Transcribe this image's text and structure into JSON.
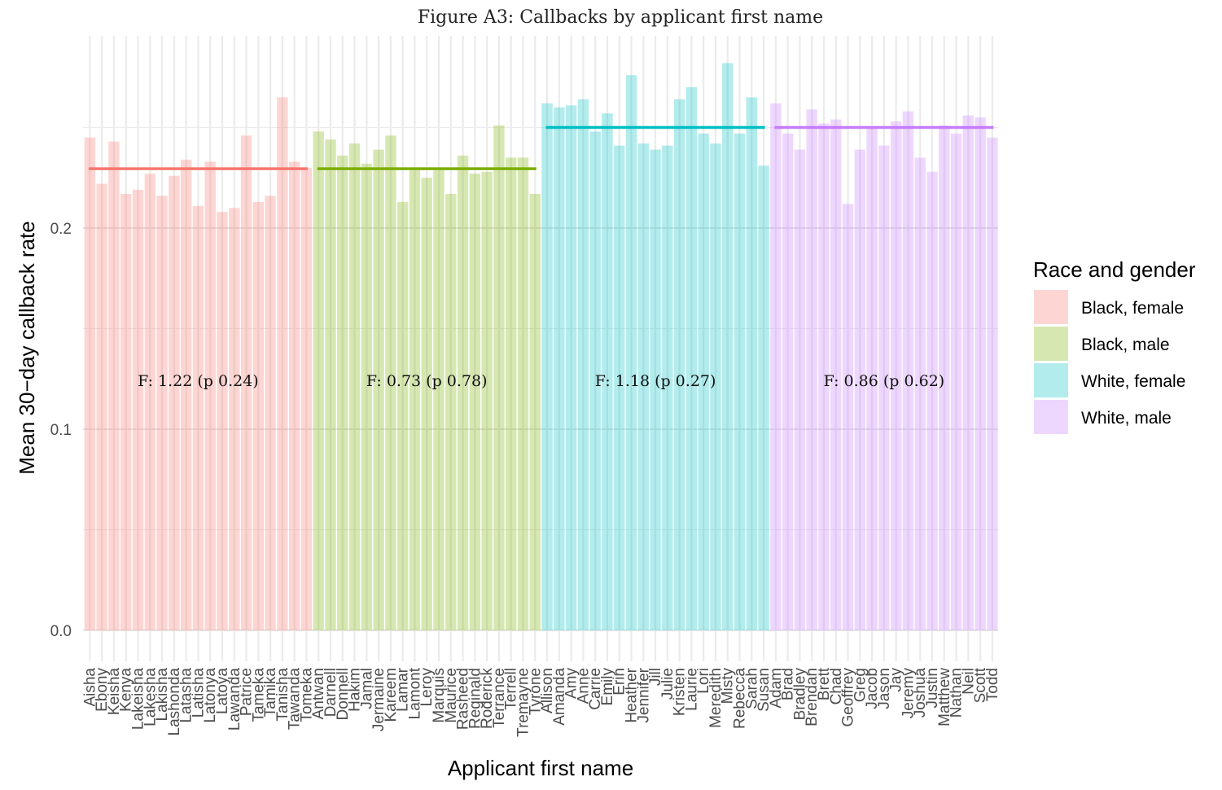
{
  "chart_data": {
    "type": "bar",
    "title": "Figure A3: Callbacks by applicant first name",
    "xlabel": "Applicant first name",
    "ylabel": "Mean 30−day callback rate",
    "ylim": [
      0,
      0.296
    ],
    "yticks": [
      0.0,
      0.1,
      0.2
    ],
    "ytick_labels": [
      "0.0",
      "0.1",
      "0.2"
    ],
    "grid": true,
    "legend": {
      "title": "Race and gender",
      "position": "right",
      "entries": [
        {
          "label": "Black, female",
          "color": "#F8766D"
        },
        {
          "label": "Black, male",
          "color": "#7CAE00"
        },
        {
          "label": "White, female",
          "color": "#00BFC4"
        },
        {
          "label": "White, male",
          "color": "#C77CFF"
        }
      ]
    },
    "bar_opacity": 0.3,
    "groups": [
      {
        "name": "Black, female",
        "color": "#F8766D",
        "mean": 0.2295,
        "annotation": "F: 1.22 (p 0.24)",
        "names": [
          "Aisha",
          "Ebony",
          "Keisha",
          "Kenya",
          "Lakeisha",
          "Lakesha",
          "Lakisha",
          "Lashonda",
          "Latasha",
          "Latisha",
          "Latonya",
          "Latoya",
          "Lawanda",
          "Patrice",
          "Tameka",
          "Tamika",
          "Tanisha",
          "Tawanda",
          "Tomeka"
        ],
        "values": [
          0.245,
          0.222,
          0.243,
          0.217,
          0.219,
          0.227,
          0.216,
          0.226,
          0.234,
          0.211,
          0.233,
          0.208,
          0.21,
          0.246,
          0.213,
          0.216,
          0.265,
          0.233,
          0.23
        ]
      },
      {
        "name": "Black, male",
        "color": "#7CAE00",
        "mean": 0.2295,
        "annotation": "F: 0.73 (p 0.78)",
        "names": [
          "Antwan",
          "Darnell",
          "Donnell",
          "Hakim",
          "Jamal",
          "Jermaine",
          "Kareem",
          "Lamar",
          "Lamont",
          "Leroy",
          "Marquis",
          "Maurice",
          "Rasheed",
          "Reginald",
          "Roderick",
          "Terrance",
          "Terrell",
          "Tremayne",
          "Tyrone"
        ],
        "values": [
          0.248,
          0.244,
          0.236,
          0.242,
          0.232,
          0.239,
          0.246,
          0.213,
          0.229,
          0.225,
          0.23,
          0.217,
          0.236,
          0.227,
          0.228,
          0.251,
          0.235,
          0.235,
          0.217
        ]
      },
      {
        "name": "White, female",
        "color": "#00BFC4",
        "mean": 0.25,
        "annotation": "F: 1.18 (p 0.27)",
        "names": [
          "Allison",
          "Amanda",
          "Amy",
          "Anne",
          "Carrie",
          "Emily",
          "Erin",
          "Heather",
          "Jennifer",
          "Jill",
          "Julie",
          "Kristen",
          "Laurie",
          "Lori",
          "Meredith",
          "Misty",
          "Rebecca",
          "Sarah",
          "Susan"
        ],
        "values": [
          0.262,
          0.26,
          0.261,
          0.264,
          0.248,
          0.257,
          0.241,
          0.276,
          0.242,
          0.239,
          0.241,
          0.264,
          0.27,
          0.247,
          0.242,
          0.282,
          0.247,
          0.265,
          0.231
        ]
      },
      {
        "name": "White, male",
        "color": "#C77CFF",
        "mean": 0.25,
        "annotation": "F: 0.86 (p 0.62)",
        "names": [
          "Adam",
          "Brad",
          "Bradley",
          "Brendan",
          "Brett",
          "Chad",
          "Geoffrey",
          "Greg",
          "Jacob",
          "Jason",
          "Jay",
          "Jeremy",
          "Joshua",
          "Justin",
          "Matthew",
          "Nathan",
          "Neil",
          "Scott",
          "Todd"
        ],
        "values": [
          0.262,
          0.247,
          0.239,
          0.259,
          0.252,
          0.254,
          0.212,
          0.239,
          0.25,
          0.241,
          0.253,
          0.258,
          0.235,
          0.228,
          0.251,
          0.247,
          0.256,
          0.255,
          0.245
        ]
      }
    ]
  }
}
